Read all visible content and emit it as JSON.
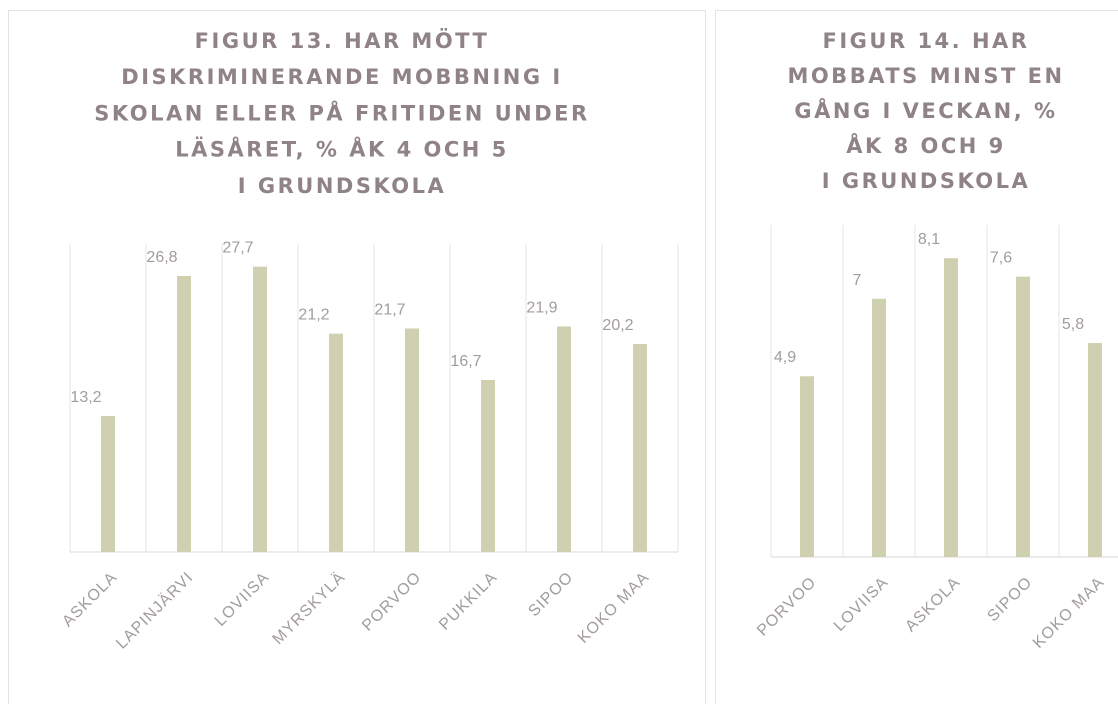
{
  "chart_data": [
    {
      "type": "bar",
      "title": [
        "FIGUR 13. HAR MÖTT",
        "DISKRIMINERANDE MOBBNING I",
        "SKOLAN ELLER PÅ FRITIDEN UNDER",
        "LÄSÅRET, % ÅK 4 OCH 5",
        "I GRUNDSKOLA"
      ],
      "categories": [
        "ASKOLA",
        "LAPINJÄRVI",
        "LOVIISA",
        "MYRSKYLÄ",
        "PORVOO",
        "PUKKILA",
        "SIPOO",
        "KOKO MAA"
      ],
      "values": [
        13.2,
        26.8,
        27.7,
        21.2,
        21.7,
        16.7,
        21.9,
        20.2
      ],
      "value_labels": [
        "13,2",
        "26,8",
        "27,7",
        "21,2",
        "21,7",
        "16,7",
        "21,9",
        "20,2"
      ],
      "color": "#cfd0b0",
      "ylim": [
        0,
        30
      ]
    },
    {
      "type": "bar",
      "title": [
        "FIGUR 14. HAR",
        "MOBBATS MINST EN",
        "GÅNG I VECKAN, %",
        "ÅK 8 OCH 9",
        "I GRUNDSKOLA"
      ],
      "categories": [
        "PORVOO",
        "LOVIISA",
        "ASKOLA",
        "SIPOO",
        "KOKO MAA"
      ],
      "values": [
        4.9,
        7,
        8.1,
        7.6,
        5.8
      ],
      "value_labels": [
        "4,9",
        "7",
        "8,1",
        "7,6",
        "5,8"
      ],
      "color": "#cfd0b0",
      "ylim": [
        0,
        9
      ]
    }
  ]
}
